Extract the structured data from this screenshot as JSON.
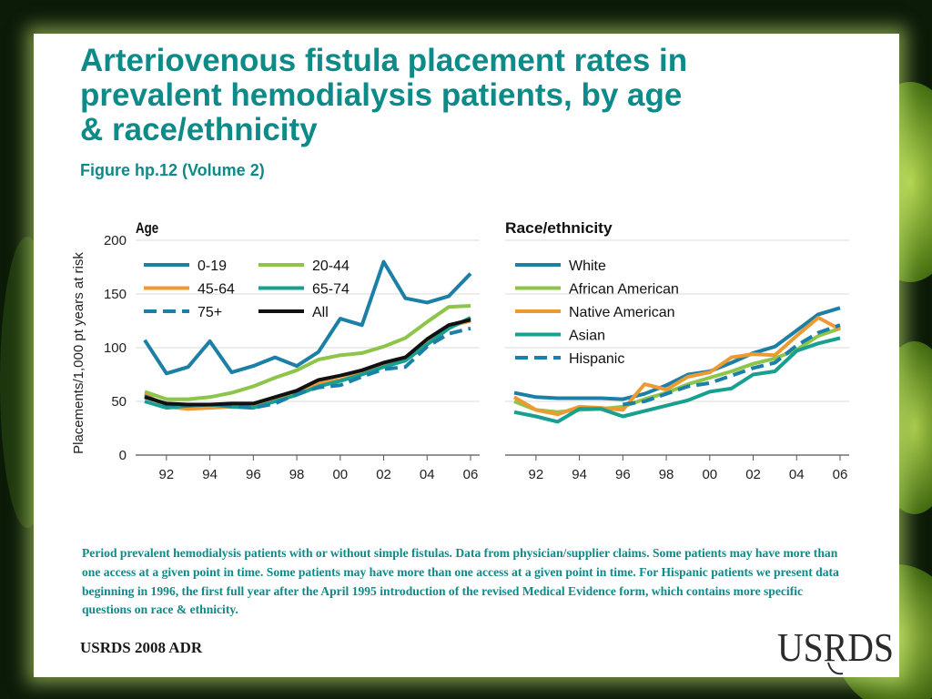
{
  "slide": {
    "title_lines": [
      "Arteriovenous fistula placement rates in",
      "prevalent hemodialysis patients, by age",
      "& race/ethnicity"
    ],
    "subtitle": "Figure hp.12 (Volume 2)",
    "note": "Period prevalent hemodialysis patients with or without simple fistulas. Data from physician/supplier claims. Some patients may have more than one access at a given point in time. Some patients may have more than one access at a given point in time. For Hispanic patients we present data beginning in 1996, the first full year after the April 1995 introduction of the revised Medical Evidence form, which contains more specific questions on race & ethnicity.",
    "footer": "USRDS 2008 ADR",
    "logo_text": "USRDS"
  },
  "chart_data": [
    {
      "type": "line",
      "title": "Age",
      "ylabel": "Placements/1,000 pt years at risk",
      "xlabel": "",
      "x": [
        1991,
        1992,
        1993,
        1994,
        1995,
        1996,
        1997,
        1998,
        1999,
        2000,
        2001,
        2002,
        2003,
        2004,
        2005,
        2006
      ],
      "x_tick_values": [
        1992,
        1994,
        1996,
        1998,
        2000,
        2002,
        2004,
        2006
      ],
      "x_tick_labels": [
        "92",
        "94",
        "96",
        "98",
        "00",
        "02",
        "04",
        "06"
      ],
      "ylim": [
        0,
        200
      ],
      "y_ticks": [
        0,
        50,
        100,
        150,
        200
      ],
      "grid": "horizontal",
      "legend_position": "top-left",
      "series": [
        {
          "name": "0-19",
          "color": "#1b7fa6",
          "dash": false,
          "values": [
            107,
            76,
            82,
            106,
            77,
            83,
            91,
            83,
            96,
            127,
            121,
            180,
            146,
            142,
            148,
            169
          ]
        },
        {
          "name": "20-44",
          "color": "#8cc54a",
          "dash": false,
          "values": [
            59,
            52,
            52,
            54,
            58,
            64,
            72,
            79,
            89,
            93,
            95,
            101,
            109,
            124,
            138,
            139
          ]
        },
        {
          "name": "45-64",
          "color": "#ee9a34",
          "dash": false,
          "values": [
            57,
            45,
            43,
            44,
            45,
            46,
            51,
            58,
            67,
            70,
            76,
            83,
            91,
            107,
            120,
            125
          ]
        },
        {
          "name": "65-74",
          "color": "#17a090",
          "dash": false,
          "values": [
            50,
            44,
            46,
            47,
            45,
            44,
            50,
            56,
            64,
            69,
            75,
            82,
            88,
            103,
            118,
            128
          ]
        },
        {
          "name": "75+",
          "color": "#1b7fa6",
          "dash": true,
          "values": [
            55,
            47,
            46,
            47,
            46,
            44,
            48,
            57,
            63,
            65,
            73,
            80,
            82,
            101,
            113,
            118
          ]
        },
        {
          "name": "All",
          "color": "#111111",
          "dash": false,
          "values": [
            54,
            48,
            47,
            47,
            48,
            48,
            54,
            60,
            70,
            74,
            79,
            86,
            91,
            108,
            121,
            126
          ]
        }
      ]
    },
    {
      "type": "line",
      "title": "Race/ethnicity",
      "ylabel": "",
      "xlabel": "",
      "x": [
        1991,
        1992,
        1993,
        1994,
        1995,
        1996,
        1997,
        1998,
        1999,
        2000,
        2001,
        2002,
        2003,
        2004,
        2005,
        2006
      ],
      "x_tick_values": [
        1992,
        1994,
        1996,
        1998,
        2000,
        2002,
        2004,
        2006
      ],
      "x_tick_labels": [
        "92",
        "94",
        "96",
        "98",
        "00",
        "02",
        "04",
        "06"
      ],
      "ylim": [
        0,
        200
      ],
      "y_ticks": [
        0,
        50,
        100,
        150,
        200
      ],
      "grid": "horizontal",
      "legend_position": "top-left",
      "series": [
        {
          "name": "White",
          "color": "#1b7fa6",
          "dash": false,
          "values": [
            58,
            54,
            53,
            53,
            53,
            52,
            57,
            65,
            75,
            78,
            86,
            95,
            101,
            116,
            131,
            137
          ]
        },
        {
          "name": "African American",
          "color": "#8cc54a",
          "dash": false,
          "values": [
            50,
            42,
            40,
            42,
            43,
            45,
            52,
            58,
            66,
            72,
            78,
            85,
            90,
            98,
            111,
            118
          ]
        },
        {
          "name": "Native American",
          "color": "#ee9a34",
          "dash": false,
          "values": [
            54,
            42,
            38,
            45,
            44,
            42,
            66,
            61,
            73,
            77,
            91,
            94,
            93,
            111,
            128,
            117
          ]
        },
        {
          "name": "Asian",
          "color": "#17a090",
          "dash": false,
          "values": [
            40,
            36,
            31,
            43,
            43,
            36,
            41,
            46,
            51,
            59,
            62,
            75,
            78,
            97,
            104,
            109
          ]
        },
        {
          "name": "Hispanic",
          "color": "#1b7fa6",
          "dash": true,
          "values": [
            null,
            null,
            null,
            null,
            null,
            47,
            50,
            57,
            64,
            67,
            74,
            81,
            86,
            102,
            114,
            121
          ]
        }
      ]
    }
  ]
}
